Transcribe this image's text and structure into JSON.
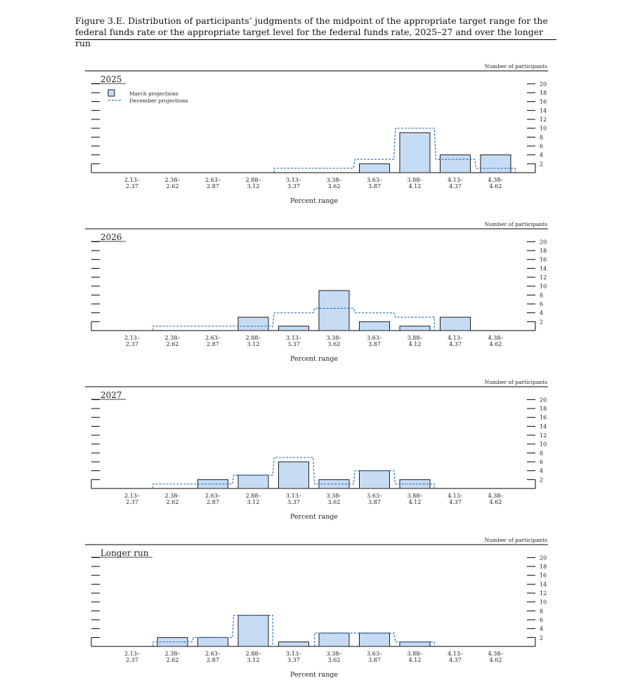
{
  "figure": {
    "title_line1": "Figure 3.E. Distribution of participants’ judgments of the midpoint of the appropriate target range for the",
    "title_line2": "federal funds rate or the appropriate target level for the federal funds rate, 2025–27 and over the longer run"
  },
  "chart_data": [
    {
      "type": "bar",
      "title": "2025",
      "xlabel": "Percent range",
      "ylabel": "Number of participants",
      "categories": [
        "2.13–2.37",
        "2.38–2.62",
        "2.63–2.87",
        "2.88–3.12",
        "3.13–3.37",
        "3.38–3.62",
        "3.63–3.87",
        "3.88–4.12",
        "4.13–4.37",
        "4.38–4.62"
      ],
      "ylim": [
        0,
        20
      ],
      "yticks": [
        2,
        4,
        6,
        8,
        10,
        12,
        14,
        16,
        18,
        20
      ],
      "legend": {
        "position": "top-left",
        "march": "March projections",
        "december": "December projections"
      },
      "series": [
        {
          "name": "March projections",
          "values": [
            0,
            0,
            0,
            0,
            0,
            0,
            2,
            9,
            4,
            4
          ]
        },
        {
          "name": "December projections",
          "values": [
            0,
            0,
            0,
            0,
            1,
            1,
            3,
            10,
            3,
            1
          ]
        }
      ]
    },
    {
      "type": "bar",
      "title": "2026",
      "xlabel": "Percent range",
      "ylabel": "Number of participants",
      "categories": [
        "2.13–2.37",
        "2.38–2.62",
        "2.63–2.87",
        "2.88–3.12",
        "3.13–3.37",
        "3.38–3.62",
        "3.63–3.87",
        "3.88–4.12",
        "4.13–4.37",
        "4.38–4.62"
      ],
      "ylim": [
        0,
        20
      ],
      "yticks": [
        2,
        4,
        6,
        8,
        10,
        12,
        14,
        16,
        18,
        20
      ],
      "series": [
        {
          "name": "March projections",
          "values": [
            0,
            0,
            0,
            3,
            1,
            9,
            2,
            1,
            3,
            0
          ]
        },
        {
          "name": "December projections",
          "values": [
            0,
            1,
            1,
            1,
            4,
            5,
            4,
            3,
            0,
            0
          ]
        }
      ]
    },
    {
      "type": "bar",
      "title": "2027",
      "xlabel": "Percent range",
      "ylabel": "Number of participants",
      "categories": [
        "2.13–2.37",
        "2.38–2.62",
        "2.63–2.87",
        "2.88–3.12",
        "3.13–3.37",
        "3.38–3.62",
        "3.63–3.87",
        "3.88–4.12",
        "4.13–4.37",
        "4.38–4.62"
      ],
      "ylim": [
        0,
        20
      ],
      "yticks": [
        2,
        4,
        6,
        8,
        10,
        12,
        14,
        16,
        18,
        20
      ],
      "series": [
        {
          "name": "March projections",
          "values": [
            0,
            0,
            2,
            3,
            6,
            2,
            4,
            2,
            0,
            0
          ]
        },
        {
          "name": "December projections",
          "values": [
            0,
            1,
            1,
            3,
            7,
            1,
            4,
            1,
            0,
            0
          ]
        }
      ]
    },
    {
      "type": "bar",
      "title": "Longer run",
      "xlabel": "Percent range",
      "ylabel": "Number of participants",
      "categories": [
        "2.13–2.37",
        "2.38–2.62",
        "2.63–2.87",
        "2.88–3.12",
        "3.13–3.37",
        "3.38–3.62",
        "3.63–3.87",
        "3.88–4.12",
        "4.13–4.37",
        "4.38–4.62"
      ],
      "ylim": [
        0,
        20
      ],
      "yticks": [
        2,
        4,
        6,
        8,
        10,
        12,
        14,
        16,
        18,
        20
      ],
      "series": [
        {
          "name": "March projections",
          "values": [
            0,
            2,
            2,
            7,
            1,
            3,
            3,
            1,
            0,
            0
          ]
        },
        {
          "name": "December projections",
          "values": [
            0,
            1,
            2,
            7,
            0,
            3,
            3,
            1,
            0,
            0
          ]
        }
      ]
    }
  ],
  "colors": {
    "march_fill": "#c6dcf4",
    "march_edge": "#1a1a1a",
    "december_line": "#2e73c0"
  }
}
